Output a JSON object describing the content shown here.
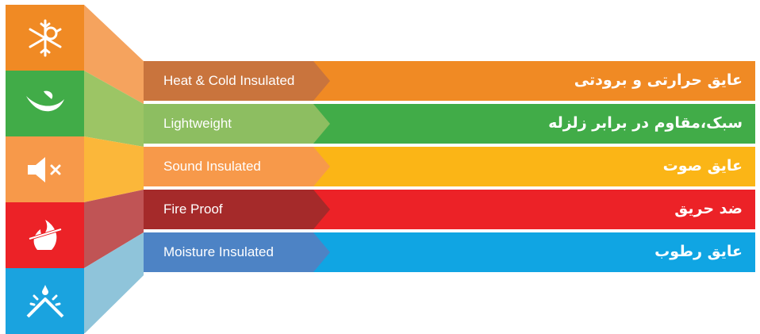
{
  "icons": [
    {
      "name": "sun-snowflake-icon",
      "color": "#F08A24"
    },
    {
      "name": "feather-icon",
      "color": "#41AC48"
    },
    {
      "name": "speaker-mute-icon",
      "color": "#F7994A"
    },
    {
      "name": "fire-no-icon",
      "color": "#EC2227"
    },
    {
      "name": "roof-water-icon",
      "color": "#1AA3DF"
    }
  ],
  "features": [
    {
      "en": "Heat & Cold Insulated",
      "fa": "عایق حرارتی و برودتی",
      "bar_color": "#F08A24",
      "tab_color": "#C9743D",
      "connector_color": "#F5A35E"
    },
    {
      "en": "Lightweight",
      "fa": "سبک،مقاوم در برابر زلزله",
      "bar_color": "#41AC48",
      "tab_color": "#8DBE61",
      "connector_color": "#9CC565"
    },
    {
      "en": "Sound Insulated",
      "fa": "عایق صوت",
      "bar_color": "#FBB516",
      "tab_color": "#F7994A",
      "connector_color": "#FBB73A"
    },
    {
      "en": "Fire Proof",
      "fa": "ضد حریق",
      "bar_color": "#EC2227",
      "tab_color": "#A52A2A",
      "connector_color": "#C05455"
    },
    {
      "en": "Moisture Insulated",
      "fa": "عایق رطوب",
      "bar_color": "#10A5E3",
      "tab_color": "#4D83C5",
      "connector_color": "#8FC4DA"
    }
  ]
}
